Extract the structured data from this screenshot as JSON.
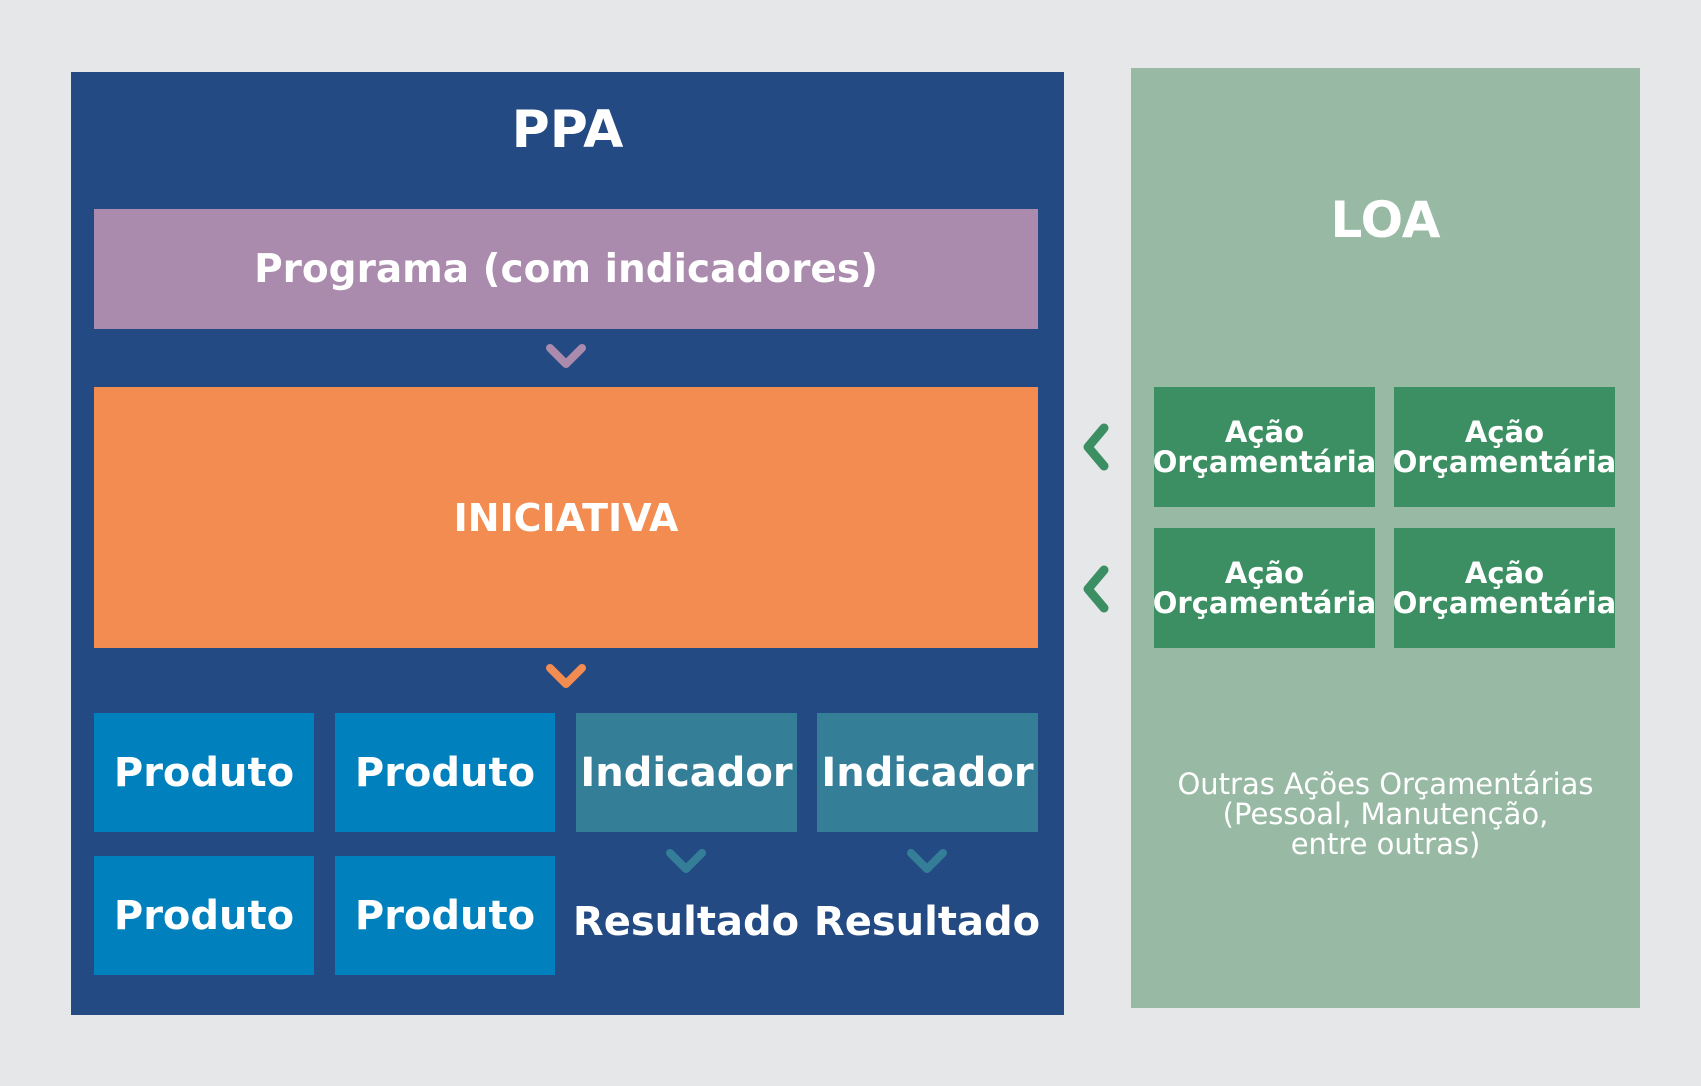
{
  "ppa": {
    "title": "PPA",
    "programa": "Programa (com indicadores)",
    "iniciativa": "INICIATIVA",
    "produtos": [
      "Produto",
      "Produto",
      "Produto",
      "Produto"
    ],
    "indicadores": [
      "Indicador",
      "Indicador"
    ],
    "resultados": [
      "Resultado",
      "Resultado"
    ]
  },
  "loa": {
    "title": "LOA",
    "acoes": [
      {
        "line1": "Ação",
        "line2": "Orçamentária"
      },
      {
        "line1": "Ação",
        "line2": "Orçamentária"
      },
      {
        "line1": "Ação",
        "line2": "Orçamentária"
      },
      {
        "line1": "Ação",
        "line2": "Orçamentária"
      }
    ],
    "outras": {
      "line1": "Outras Ações Orçamentárias",
      "line2": "(Pessoal, Manutenção,",
      "line3": "entre outras)"
    }
  },
  "colors": {
    "ppa_bg": "#234a82",
    "loa_bg": "#98b9a3",
    "programa": "#aa8aad",
    "iniciativa": "#f28c51",
    "produto": "#0080bc",
    "indicador": "#347e98",
    "acao": "#3c8f62",
    "arrow_green": "#3c8f62"
  },
  "icons": [
    "chevron-down-icon",
    "chevron-left-icon"
  ]
}
